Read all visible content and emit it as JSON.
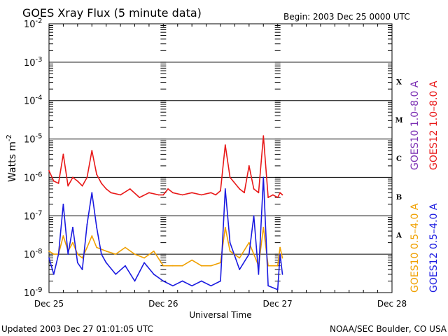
{
  "header": {
    "title": "GOES Xray Flux (5 minute data)",
    "begin": "Begin:  2003 Dec 25 0000 UTC"
  },
  "footer": {
    "updated": "Updated 2003 Dec 27 01:01:05 UTC",
    "credit": "NOAA/SEC Boulder, CO USA"
  },
  "colors": {
    "goes10_long": "#7b2fb3",
    "goes12_long": "#e81818",
    "goes10_short": "#f0a000",
    "goes12_short": "#1a1ae0"
  },
  "chart_data": {
    "type": "line",
    "xlabel": "Universal Time",
    "ylabel": "Watts m",
    "ylabel_sup": "-2",
    "yscale": "log",
    "grid": true,
    "xlim": [
      "2003-12-25 00:00",
      "2003-12-28 00:00"
    ],
    "x_ticks": [
      "Dec 25",
      "Dec 26",
      "Dec 27",
      "Dec 28"
    ],
    "ylim": [
      1e-09,
      0.01
    ],
    "y_ticks": [
      {
        "base": "10",
        "exp": "-2",
        "value": 0.01
      },
      {
        "base": "10",
        "exp": "-3",
        "value": 0.001
      },
      {
        "base": "10",
        "exp": "-4",
        "value": 0.0001
      },
      {
        "base": "10",
        "exp": "-5",
        "value": 1e-05
      },
      {
        "base": "10",
        "exp": "-6",
        "value": 1e-06
      },
      {
        "base": "10",
        "exp": "-7",
        "value": 1e-07
      },
      {
        "base": "10",
        "exp": "-8",
        "value": 1e-08
      },
      {
        "base": "10",
        "exp": "-9",
        "value": 1e-09
      }
    ],
    "flare_classes": [
      {
        "label": "X",
        "value": 0.0001
      },
      {
        "label": "M",
        "value": 1e-05
      },
      {
        "label": "C",
        "value": 1e-06
      },
      {
        "label": "B",
        "value": 1e-07
      },
      {
        "label": "A",
        "value": 1e-08
      }
    ],
    "legend_placement": "right",
    "series": [
      {
        "name": "GOES12 1.0-8.0 A",
        "color": "#e81818",
        "x": [
          "2003-12-25 00:00",
          "2003-12-25 01:00",
          "2003-12-25 02:00",
          "2003-12-25 03:00",
          "2003-12-25 04:00",
          "2003-12-25 05:00",
          "2003-12-25 06:00",
          "2003-12-25 07:00",
          "2003-12-25 08:00",
          "2003-12-25 09:00",
          "2003-12-25 10:00",
          "2003-12-25 11:00",
          "2003-12-25 12:00",
          "2003-12-25 13:00",
          "2003-12-25 15:00",
          "2003-12-25 17:00",
          "2003-12-25 19:00",
          "2003-12-25 21:00",
          "2003-12-25 23:00",
          "2003-12-26 00:00",
          "2003-12-26 01:00",
          "2003-12-26 02:00",
          "2003-12-26 04:00",
          "2003-12-26 06:00",
          "2003-12-26 08:00",
          "2003-12-26 10:00",
          "2003-12-26 11:00",
          "2003-12-26 12:00",
          "2003-12-26 13:00",
          "2003-12-26 14:00",
          "2003-12-26 16:00",
          "2003-12-26 17:00",
          "2003-12-26 18:00",
          "2003-12-26 19:00",
          "2003-12-26 20:00",
          "2003-12-26 21:00",
          "2003-12-26 22:00",
          "2003-12-26 23:00",
          "2003-12-27 00:00",
          "2003-12-27 00:30",
          "2003-12-27 01:00"
        ],
        "values": [
          1.5e-06,
          8e-07,
          7e-07,
          4e-06,
          6e-07,
          1e-06,
          8e-07,
          6e-07,
          1e-06,
          5e-06,
          1.2e-06,
          7e-07,
          5e-07,
          4e-07,
          3.5e-07,
          5e-07,
          3e-07,
          4e-07,
          3.5e-07,
          3.5e-07,
          5e-07,
          4e-07,
          3.5e-07,
          4e-07,
          3.5e-07,
          4e-07,
          3.5e-07,
          4.5e-07,
          7e-06,
          1e-06,
          5e-07,
          4e-07,
          2e-06,
          5e-07,
          4e-07,
          1.2e-05,
          3e-07,
          3.5e-07,
          3e-07,
          4e-07,
          3.5e-07
        ]
      },
      {
        "name": "GOES10 0.5-4.0 A",
        "color": "#f0a000",
        "x": [
          "2003-12-25 00:00",
          "2003-12-25 01:00",
          "2003-12-25 02:00",
          "2003-12-25 03:00",
          "2003-12-25 04:00",
          "2003-12-25 05:00",
          "2003-12-25 06:00",
          "2003-12-25 07:00",
          "2003-12-25 08:00",
          "2003-12-25 09:00",
          "2003-12-25 10:00",
          "2003-12-25 12:00",
          "2003-12-25 14:00",
          "2003-12-25 16:00",
          "2003-12-25 18:00",
          "2003-12-25 20:00",
          "2003-12-25 22:00",
          "2003-12-26 00:00",
          "2003-12-26 02:00",
          "2003-12-26 04:00",
          "2003-12-26 06:00",
          "2003-12-26 08:00",
          "2003-12-26 10:00",
          "2003-12-26 12:00",
          "2003-12-26 13:00",
          "2003-12-26 14:00",
          "2003-12-26 16:00",
          "2003-12-26 18:00",
          "2003-12-26 20:00",
          "2003-12-26 21:00",
          "2003-12-26 22:00",
          "2003-12-27 00:00",
          "2003-12-27 00:30",
          "2003-12-27 01:00"
        ],
        "values": [
          1.2e-08,
          1e-08,
          1e-08,
          3e-08,
          1.2e-08,
          2e-08,
          1e-08,
          8e-09,
          1.5e-08,
          3e-08,
          1.5e-08,
          1.2e-08,
          1e-08,
          1.5e-08,
          1e-08,
          8e-09,
          1.2e-08,
          5e-09,
          5e-09,
          5e-09,
          7e-09,
          5e-09,
          5e-09,
          6e-09,
          5e-08,
          1.2e-08,
          8e-09,
          2e-08,
          5e-09,
          5e-08,
          5e-09,
          5e-09,
          1.5e-08,
          8e-09
        ]
      },
      {
        "name": "GOES12 0.5-4.0 A",
        "color": "#1a1ae0",
        "x": [
          "2003-12-25 00:00",
          "2003-12-25 01:00",
          "2003-12-25 02:00",
          "2003-12-25 03:00",
          "2003-12-25 04:00",
          "2003-12-25 05:00",
          "2003-12-25 06:00",
          "2003-12-25 07:00",
          "2003-12-25 08:00",
          "2003-12-25 09:00",
          "2003-12-25 10:00",
          "2003-12-25 11:00",
          "2003-12-25 12:00",
          "2003-12-25 14:00",
          "2003-12-25 16:00",
          "2003-12-25 18:00",
          "2003-12-25 20:00",
          "2003-12-25 22:00",
          "2003-12-26 00:00",
          "2003-12-26 02:00",
          "2003-12-26 04:00",
          "2003-12-26 06:00",
          "2003-12-26 08:00",
          "2003-12-26 10:00",
          "2003-12-26 12:00",
          "2003-12-26 13:00",
          "2003-12-26 14:00",
          "2003-12-26 16:00",
          "2003-12-26 18:00",
          "2003-12-26 19:00",
          "2003-12-26 20:00",
          "2003-12-26 21:00",
          "2003-12-26 22:00",
          "2003-12-27 00:00",
          "2003-12-27 00:30",
          "2003-12-27 01:00"
        ],
        "values": [
          8e-09,
          3e-09,
          1e-08,
          2e-07,
          1e-08,
          5e-08,
          6e-09,
          4e-09,
          6e-08,
          4e-07,
          5e-08,
          1e-08,
          6e-09,
          3e-09,
          5e-09,
          2e-09,
          6e-09,
          3e-09,
          2e-09,
          1.5e-09,
          2e-09,
          1.5e-09,
          2e-09,
          1.5e-09,
          2e-09,
          5e-07,
          2e-08,
          4e-09,
          1e-08,
          1e-07,
          3e-09,
          1e-06,
          1.5e-09,
          1.2e-09,
          1e-08,
          3e-09
        ]
      }
    ]
  }
}
